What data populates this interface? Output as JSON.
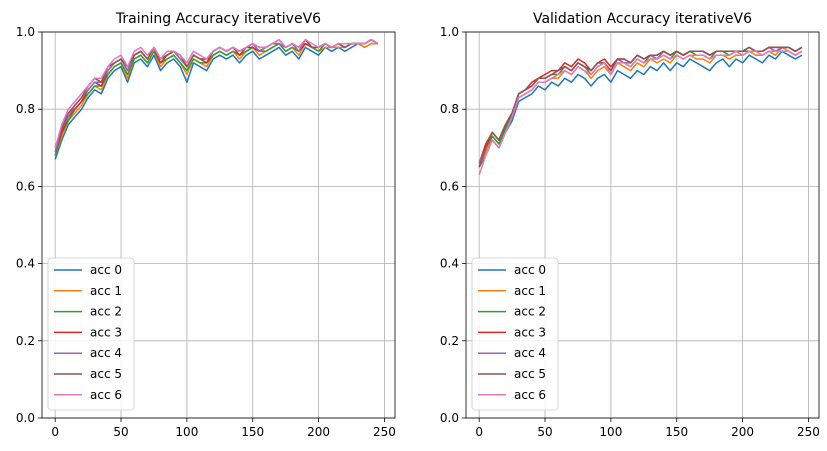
{
  "chart_data": [
    {
      "type": "line",
      "title": "Training Accuracy iterativeV6",
      "xlabel": "",
      "ylabel": "",
      "xlim": [
        -10,
        258
      ],
      "ylim": [
        0,
        1.0
      ],
      "xticks": [
        0,
        50,
        100,
        150,
        200,
        250
      ],
      "xtick_labels": [
        "0",
        "50",
        "100",
        "150",
        "200",
        "250"
      ],
      "yticks": [
        0,
        0.2,
        0.4,
        0.6,
        0.8,
        1.0
      ],
      "ytick_labels": [
        "0.0",
        "0.2",
        "0.4",
        "0.6",
        "0.8",
        "1.0"
      ],
      "grid": true,
      "legend_position": "lower-left",
      "x": [
        0,
        5,
        10,
        15,
        20,
        25,
        30,
        35,
        40,
        45,
        50,
        55,
        60,
        65,
        70,
        75,
        80,
        85,
        90,
        95,
        100,
        105,
        110,
        115,
        120,
        125,
        130,
        135,
        140,
        145,
        150,
        155,
        160,
        165,
        170,
        175,
        180,
        185,
        190,
        195,
        200,
        205,
        210,
        215,
        220,
        225,
        230,
        235,
        240,
        245
      ],
      "series": [
        {
          "name": "acc 0",
          "color": "#1f77b4",
          "values": [
            0.67,
            0.72,
            0.76,
            0.78,
            0.8,
            0.83,
            0.85,
            0.84,
            0.88,
            0.9,
            0.91,
            0.87,
            0.92,
            0.93,
            0.91,
            0.94,
            0.9,
            0.92,
            0.93,
            0.91,
            0.87,
            0.92,
            0.91,
            0.9,
            0.93,
            0.94,
            0.93,
            0.94,
            0.92,
            0.94,
            0.95,
            0.93,
            0.94,
            0.95,
            0.96,
            0.94,
            0.95,
            0.93,
            0.96,
            0.95,
            0.94,
            0.96,
            0.95,
            0.96,
            0.95,
            0.96,
            0.97,
            0.96,
            0.97,
            0.97
          ]
        },
        {
          "name": "acc 1",
          "color": "#ff7f0e",
          "values": [
            0.68,
            0.73,
            0.77,
            0.79,
            0.81,
            0.84,
            0.86,
            0.85,
            0.89,
            0.91,
            0.92,
            0.88,
            0.93,
            0.94,
            0.92,
            0.95,
            0.91,
            0.93,
            0.94,
            0.92,
            0.89,
            0.93,
            0.92,
            0.91,
            0.94,
            0.95,
            0.94,
            0.95,
            0.93,
            0.95,
            0.96,
            0.94,
            0.95,
            0.96,
            0.97,
            0.95,
            0.96,
            0.94,
            0.97,
            0.96,
            0.95,
            0.96,
            0.96,
            0.96,
            0.96,
            0.97,
            0.97,
            0.96,
            0.97,
            0.97
          ]
        },
        {
          "name": "acc 2",
          "color": "#2ca02c",
          "values": [
            0.68,
            0.74,
            0.77,
            0.8,
            0.82,
            0.84,
            0.86,
            0.86,
            0.89,
            0.91,
            0.92,
            0.89,
            0.93,
            0.94,
            0.92,
            0.95,
            0.92,
            0.93,
            0.94,
            0.92,
            0.9,
            0.93,
            0.92,
            0.92,
            0.94,
            0.95,
            0.94,
            0.95,
            0.94,
            0.95,
            0.96,
            0.95,
            0.95,
            0.96,
            0.97,
            0.95,
            0.96,
            0.95,
            0.97,
            0.96,
            0.95,
            0.97,
            0.96,
            0.97,
            0.96,
            0.97,
            0.97,
            0.97,
            0.98,
            0.97
          ]
        },
        {
          "name": "acc 3",
          "color": "#d62728",
          "values": [
            0.69,
            0.74,
            0.78,
            0.8,
            0.82,
            0.85,
            0.87,
            0.86,
            0.9,
            0.92,
            0.93,
            0.9,
            0.94,
            0.95,
            0.93,
            0.96,
            0.92,
            0.94,
            0.95,
            0.93,
            0.91,
            0.94,
            0.93,
            0.92,
            0.95,
            0.96,
            0.95,
            0.96,
            0.94,
            0.96,
            0.96,
            0.95,
            0.96,
            0.97,
            0.97,
            0.96,
            0.97,
            0.95,
            0.97,
            0.96,
            0.96,
            0.97,
            0.96,
            0.97,
            0.96,
            0.97,
            0.97,
            0.97,
            0.98,
            0.97
          ]
        },
        {
          "name": "acc 4",
          "color": "#9467bd",
          "values": [
            0.69,
            0.75,
            0.78,
            0.81,
            0.83,
            0.85,
            0.87,
            0.87,
            0.9,
            0.92,
            0.93,
            0.9,
            0.94,
            0.95,
            0.93,
            0.96,
            0.93,
            0.94,
            0.95,
            0.93,
            0.91,
            0.94,
            0.93,
            0.93,
            0.95,
            0.96,
            0.95,
            0.96,
            0.95,
            0.96,
            0.97,
            0.95,
            0.96,
            0.97,
            0.97,
            0.96,
            0.97,
            0.95,
            0.98,
            0.96,
            0.96,
            0.97,
            0.96,
            0.97,
            0.96,
            0.97,
            0.97,
            0.97,
            0.98,
            0.97
          ]
        },
        {
          "name": "acc 5",
          "color": "#8c564b",
          "values": [
            0.7,
            0.75,
            0.79,
            0.81,
            0.83,
            0.86,
            0.88,
            0.87,
            0.91,
            0.92,
            0.93,
            0.91,
            0.94,
            0.95,
            0.93,
            0.96,
            0.93,
            0.94,
            0.95,
            0.94,
            0.91,
            0.94,
            0.93,
            0.93,
            0.95,
            0.96,
            0.95,
            0.96,
            0.95,
            0.96,
            0.97,
            0.96,
            0.96,
            0.97,
            0.98,
            0.96,
            0.97,
            0.96,
            0.98,
            0.96,
            0.96,
            0.97,
            0.96,
            0.97,
            0.96,
            0.97,
            0.97,
            0.97,
            0.98,
            0.97
          ]
        },
        {
          "name": "acc 6",
          "color": "#e377c2",
          "values": [
            0.7,
            0.76,
            0.8,
            0.82,
            0.84,
            0.86,
            0.88,
            0.88,
            0.91,
            0.93,
            0.94,
            0.91,
            0.95,
            0.96,
            0.94,
            0.96,
            0.93,
            0.95,
            0.95,
            0.94,
            0.92,
            0.95,
            0.94,
            0.93,
            0.95,
            0.96,
            0.95,
            0.96,
            0.95,
            0.96,
            0.97,
            0.96,
            0.96,
            0.97,
            0.98,
            0.96,
            0.97,
            0.96,
            0.98,
            0.97,
            0.96,
            0.97,
            0.96,
            0.97,
            0.97,
            0.97,
            0.97,
            0.97,
            0.98,
            0.97
          ]
        }
      ]
    },
    {
      "type": "line",
      "title": "Validation Accuracy iterativeV6",
      "xlabel": "",
      "ylabel": "",
      "xlim": [
        -10,
        258
      ],
      "ylim": [
        0,
        1.0
      ],
      "xticks": [
        0,
        50,
        100,
        150,
        200,
        250
      ],
      "xtick_labels": [
        "0",
        "50",
        "100",
        "150",
        "200",
        "250"
      ],
      "yticks": [
        0,
        0.2,
        0.4,
        0.6,
        0.8,
        1.0
      ],
      "ytick_labels": [
        "0.0",
        "0.2",
        "0.4",
        "0.6",
        "0.8",
        "1.0"
      ],
      "grid": true,
      "legend_position": "lower-left",
      "x": [
        0,
        5,
        10,
        15,
        20,
        25,
        30,
        35,
        40,
        45,
        50,
        55,
        60,
        65,
        70,
        75,
        80,
        85,
        90,
        95,
        100,
        105,
        110,
        115,
        120,
        125,
        130,
        135,
        140,
        145,
        150,
        155,
        160,
        165,
        170,
        175,
        180,
        185,
        190,
        195,
        200,
        205,
        210,
        215,
        220,
        225,
        230,
        235,
        240,
        245
      ],
      "series": [
        {
          "name": "acc 0",
          "color": "#1f77b4",
          "values": [
            0.65,
            0.68,
            0.72,
            0.7,
            0.74,
            0.77,
            0.82,
            0.83,
            0.84,
            0.86,
            0.85,
            0.87,
            0.86,
            0.88,
            0.87,
            0.89,
            0.88,
            0.86,
            0.88,
            0.89,
            0.87,
            0.9,
            0.89,
            0.88,
            0.9,
            0.89,
            0.91,
            0.9,
            0.92,
            0.9,
            0.92,
            0.91,
            0.93,
            0.92,
            0.91,
            0.9,
            0.92,
            0.93,
            0.91,
            0.93,
            0.92,
            0.94,
            0.93,
            0.92,
            0.94,
            0.93,
            0.95,
            0.94,
            0.93,
            0.94
          ]
        },
        {
          "name": "acc 1",
          "color": "#ff7f0e",
          "values": [
            0.65,
            0.69,
            0.73,
            0.71,
            0.75,
            0.78,
            0.83,
            0.84,
            0.85,
            0.87,
            0.87,
            0.88,
            0.88,
            0.9,
            0.89,
            0.91,
            0.9,
            0.88,
            0.9,
            0.91,
            0.89,
            0.92,
            0.91,
            0.9,
            0.92,
            0.91,
            0.93,
            0.92,
            0.93,
            0.92,
            0.94,
            0.93,
            0.94,
            0.93,
            0.93,
            0.92,
            0.94,
            0.94,
            0.93,
            0.94,
            0.94,
            0.95,
            0.94,
            0.94,
            0.95,
            0.94,
            0.96,
            0.95,
            0.94,
            0.95
          ]
        },
        {
          "name": "acc 2",
          "color": "#2ca02c",
          "values": [
            0.65,
            0.7,
            0.73,
            0.71,
            0.75,
            0.79,
            0.84,
            0.85,
            0.86,
            0.88,
            0.88,
            0.89,
            0.89,
            0.91,
            0.9,
            0.92,
            0.91,
            0.89,
            0.91,
            0.92,
            0.9,
            0.93,
            0.92,
            0.91,
            0.93,
            0.92,
            0.94,
            0.93,
            0.94,
            0.93,
            0.95,
            0.94,
            0.95,
            0.94,
            0.94,
            0.93,
            0.95,
            0.95,
            0.94,
            0.95,
            0.95,
            0.95,
            0.95,
            0.95,
            0.96,
            0.95,
            0.96,
            0.96,
            0.95,
            0.96
          ]
        },
        {
          "name": "acc 3",
          "color": "#d62728",
          "values": [
            0.66,
            0.71,
            0.74,
            0.72,
            0.76,
            0.79,
            0.84,
            0.85,
            0.87,
            0.88,
            0.89,
            0.9,
            0.9,
            0.92,
            0.91,
            0.93,
            0.92,
            0.9,
            0.92,
            0.93,
            0.91,
            0.93,
            0.93,
            0.92,
            0.94,
            0.93,
            0.94,
            0.94,
            0.95,
            0.94,
            0.95,
            0.94,
            0.95,
            0.95,
            0.95,
            0.94,
            0.95,
            0.95,
            0.95,
            0.95,
            0.95,
            0.96,
            0.95,
            0.95,
            0.96,
            0.96,
            0.96,
            0.96,
            0.95,
            0.96
          ]
        },
        {
          "name": "acc 4",
          "color": "#9467bd",
          "values": [
            0.66,
            0.7,
            0.74,
            0.72,
            0.76,
            0.79,
            0.84,
            0.85,
            0.86,
            0.88,
            0.88,
            0.89,
            0.9,
            0.91,
            0.9,
            0.92,
            0.91,
            0.9,
            0.92,
            0.92,
            0.9,
            0.93,
            0.92,
            0.92,
            0.94,
            0.93,
            0.94,
            0.93,
            0.95,
            0.94,
            0.95,
            0.94,
            0.95,
            0.95,
            0.95,
            0.94,
            0.95,
            0.95,
            0.95,
            0.95,
            0.95,
            0.96,
            0.95,
            0.95,
            0.96,
            0.95,
            0.96,
            0.96,
            0.95,
            0.96
          ]
        },
        {
          "name": "acc 5",
          "color": "#8c564b",
          "values": [
            0.65,
            0.7,
            0.74,
            0.72,
            0.76,
            0.79,
            0.84,
            0.85,
            0.86,
            0.88,
            0.88,
            0.89,
            0.9,
            0.91,
            0.9,
            0.92,
            0.91,
            0.9,
            0.92,
            0.92,
            0.9,
            0.93,
            0.93,
            0.92,
            0.94,
            0.93,
            0.94,
            0.94,
            0.95,
            0.94,
            0.95,
            0.94,
            0.95,
            0.95,
            0.95,
            0.94,
            0.95,
            0.95,
            0.95,
            0.95,
            0.95,
            0.96,
            0.95,
            0.95,
            0.96,
            0.96,
            0.96,
            0.96,
            0.95,
            0.96
          ]
        },
        {
          "name": "acc 6",
          "color": "#e377c2",
          "values": [
            0.63,
            0.68,
            0.72,
            0.7,
            0.74,
            0.78,
            0.83,
            0.84,
            0.85,
            0.87,
            0.87,
            0.88,
            0.89,
            0.9,
            0.89,
            0.91,
            0.9,
            0.89,
            0.91,
            0.92,
            0.89,
            0.92,
            0.92,
            0.91,
            0.93,
            0.92,
            0.93,
            0.93,
            0.94,
            0.93,
            0.94,
            0.93,
            0.94,
            0.94,
            0.94,
            0.93,
            0.94,
            0.94,
            0.94,
            0.95,
            0.94,
            0.95,
            0.95,
            0.94,
            0.95,
            0.95,
            0.95,
            0.95,
            0.94,
            0.95
          ]
        }
      ]
    }
  ]
}
